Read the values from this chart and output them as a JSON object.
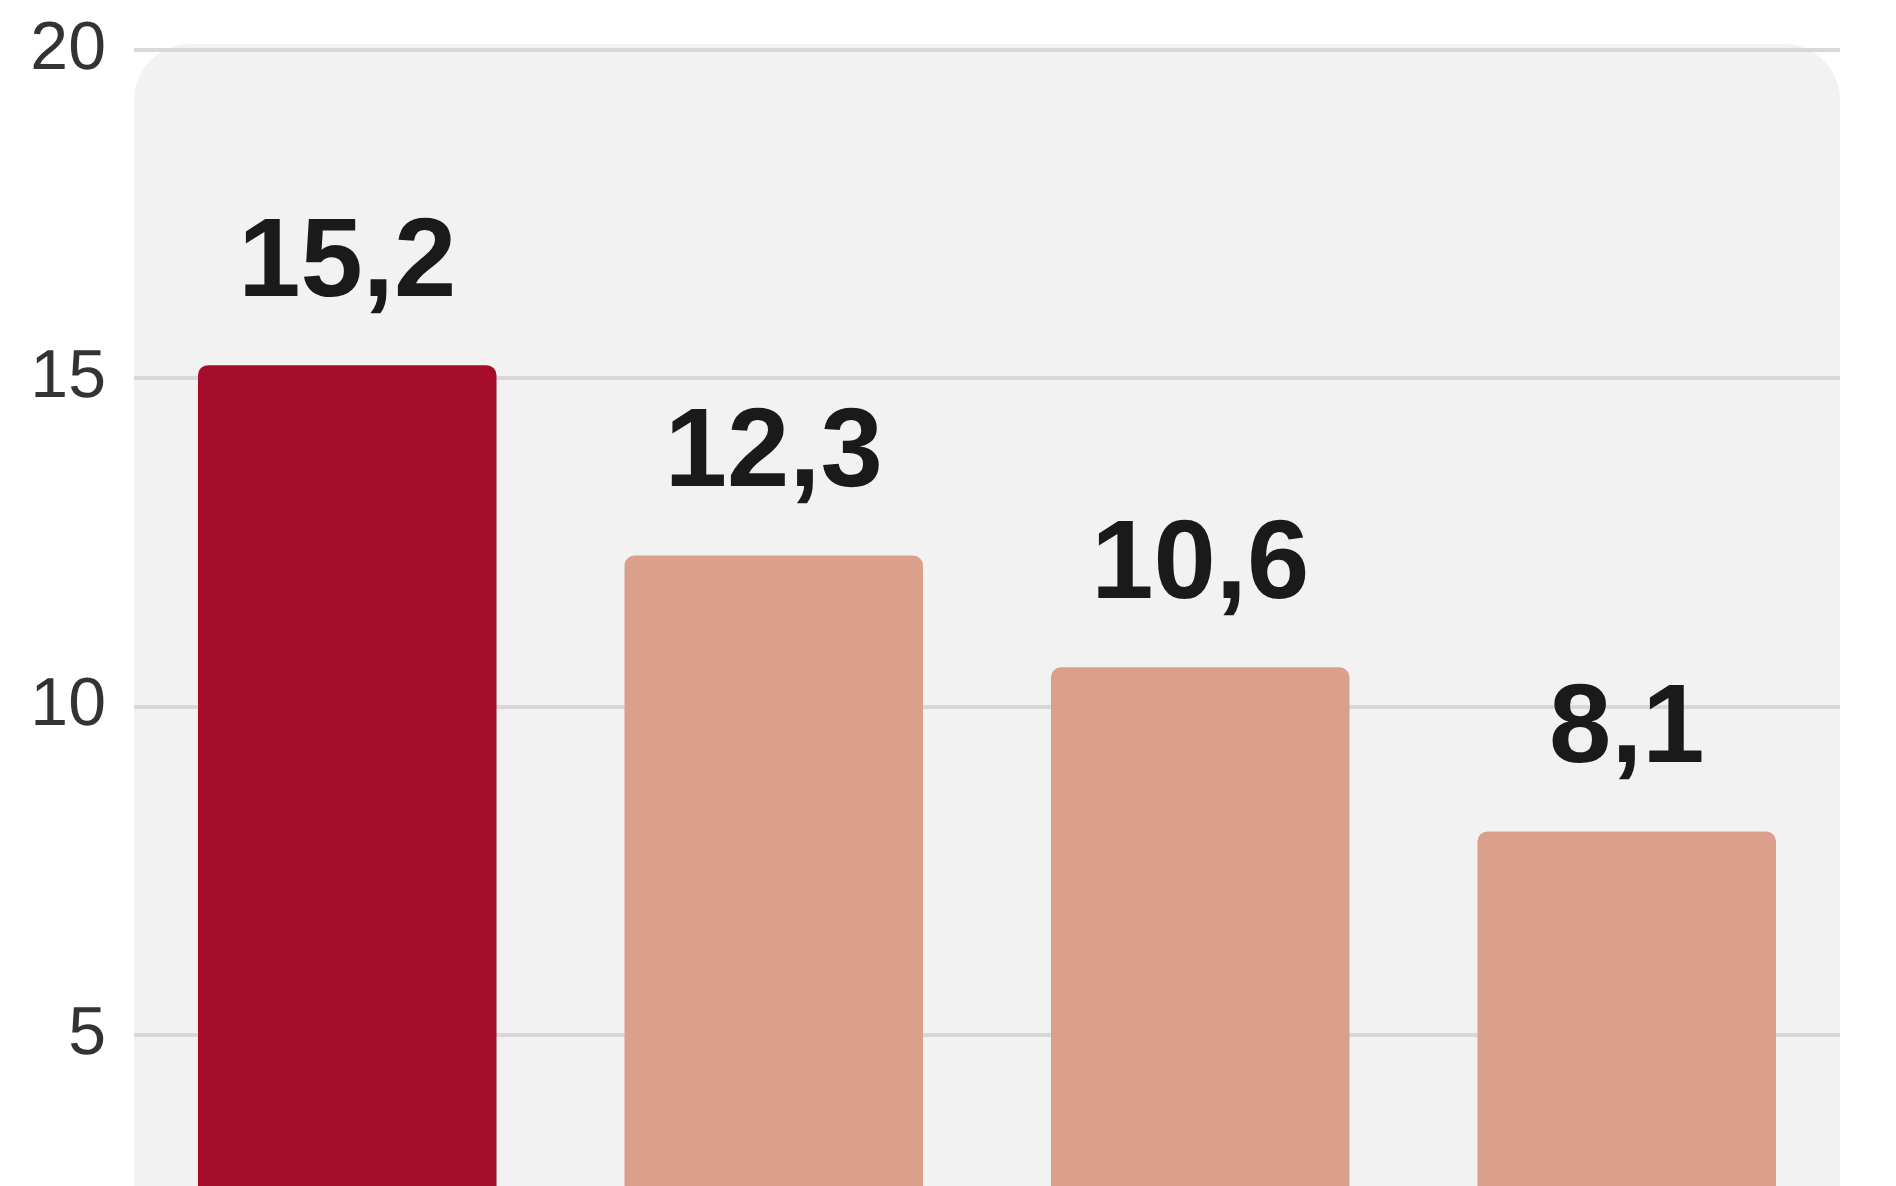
{
  "chart_data": {
    "type": "bar",
    "categories": [
      null,
      null,
      null,
      null
    ],
    "values": [
      15.2,
      12.3,
      10.6,
      8.1
    ],
    "colors": [
      "#a50d2a",
      "#dba08b",
      "#dba08b",
      "#dba08b"
    ],
    "value_labels": [
      "15,2",
      "12,3",
      "10,6",
      "8,1"
    ],
    "ylim": [
      2.7,
      20
    ],
    "yticks": [
      5,
      10,
      15,
      20
    ],
    "grid": "y",
    "tick_labels": "y"
  }
}
